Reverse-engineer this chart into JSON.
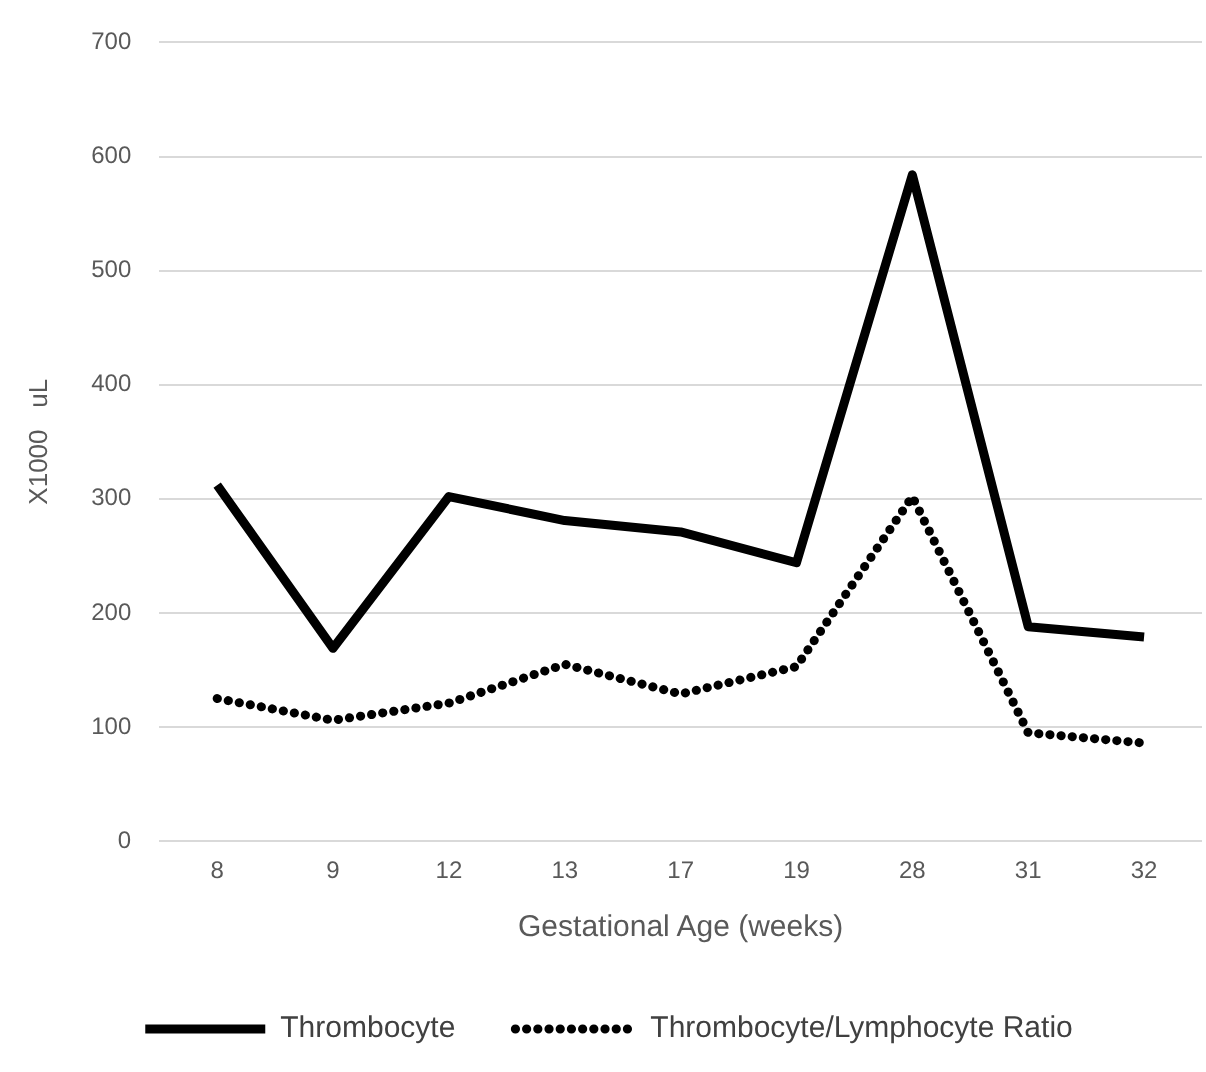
{
  "chart_data": {
    "type": "line",
    "xlabel": "Gestational Age (weeks)",
    "ylabel": "X1000   uL",
    "categories": [
      "8",
      "9",
      "12",
      "13",
      "17",
      "19",
      "28",
      "31",
      "32"
    ],
    "series": [
      {
        "name": "Thrombocyte",
        "color": "#000000",
        "line_style": "solid",
        "values": [
          312,
          169,
          302,
          281,
          271,
          244,
          584,
          188,
          179
        ]
      },
      {
        "name": "Thrombocyte/Lymphocyte Ratio",
        "color": "#000000",
        "line_style": "dotted",
        "values": [
          125,
          106,
          121,
          155,
          129,
          153,
          302,
          95,
          86
        ]
      }
    ],
    "ylim": [
      0,
      700
    ],
    "yticks": [
      0,
      100,
      200,
      300,
      400,
      500,
      600,
      700
    ],
    "grid": "y",
    "legend": "bottom",
    "marker": "none"
  }
}
